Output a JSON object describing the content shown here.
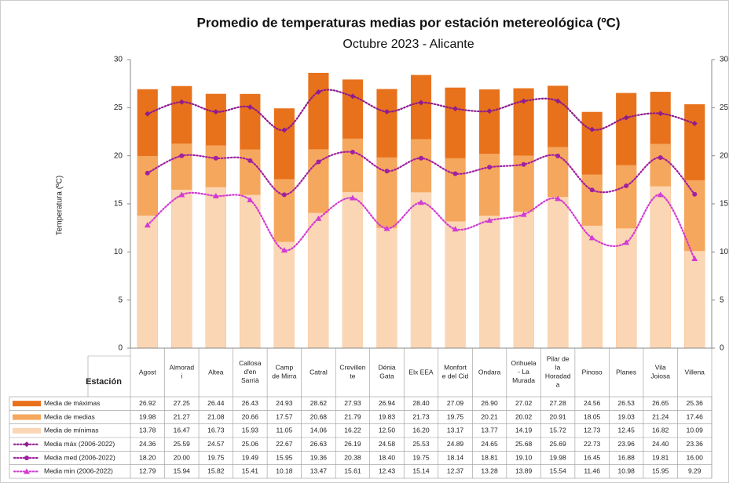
{
  "chart_data": {
    "type": "bar-line",
    "title": "Promedio de temperaturas medias por estación metereológica (ºC)",
    "subtitle": "Octubre 2023 - Alicante",
    "y_label": "Temperatura (ºC)",
    "category_label": "Estación",
    "categories": [
      "Agost",
      "Almorad\ni",
      "Altea",
      "Callosa\nd'en\nSarrià",
      "Camp\nde Mirra",
      "Catral",
      "Crevillen\nte",
      "Dénia\nGata",
      "Elx EEA",
      "Monfort\ne del Cid",
      "Ondara",
      "Orihuela\n- La\nMurada",
      "Pilar de\nla\nHoradad\na",
      "Pinoso",
      "Planes",
      "Vila\nJoiosa",
      "Villena"
    ],
    "ylim": [
      0,
      30
    ],
    "yticks": [
      0,
      5,
      10,
      15,
      20,
      25,
      30
    ],
    "series": [
      {
        "name": "Media de máximas",
        "kind": "bar",
        "color": "#e8711c",
        "values": [
          26.92,
          27.25,
          26.44,
          26.43,
          24.93,
          28.62,
          27.93,
          26.94,
          28.4,
          27.09,
          26.9,
          27.02,
          27.28,
          24.56,
          26.53,
          26.65,
          25.36
        ],
        "value_labels": [
          "26.92",
          "27.25",
          "26.44",
          "26.43",
          "24.93",
          "28.62",
          "27.93",
          "26.94",
          "28.40",
          "27.09",
          "26.90",
          "27.02",
          "27.28",
          "24.56",
          "26.53",
          "26.65",
          "25.36"
        ]
      },
      {
        "name": "Media de medias",
        "kind": "bar",
        "color": "#f5a75e",
        "values": [
          19.98,
          21.27,
          21.08,
          20.66,
          17.57,
          20.68,
          21.79,
          19.83,
          21.73,
          19.75,
          20.21,
          20.02,
          20.91,
          18.05,
          19.03,
          21.24,
          17.46
        ],
        "value_labels": [
          "19.98",
          "21.27",
          "21.08",
          "20.66",
          "17.57",
          "20.68",
          "21.79",
          "19.83",
          "21.73",
          "19.75",
          "20.21",
          "20.02",
          "20.91",
          "18.05",
          "19.03",
          "21.24",
          "17.46"
        ]
      },
      {
        "name": "Media de mínimas",
        "kind": "bar",
        "color": "#fbd6b4",
        "values": [
          13.78,
          16.47,
          16.73,
          15.93,
          11.05,
          14.06,
          16.22,
          12.5,
          16.2,
          13.17,
          13.77,
          14.19,
          15.72,
          12.73,
          12.45,
          16.82,
          10.09
        ],
        "value_labels": [
          "13.78",
          "16.47",
          "16.73",
          "15.93",
          "11.05",
          "14.06",
          "16.22",
          "12.50",
          "16.20",
          "13.17",
          "13.77",
          "14.19",
          "15.72",
          "12.73",
          "12.45",
          "16.82",
          "10.09"
        ]
      },
      {
        "name": "Media máx (2006-2022)",
        "kind": "line",
        "marker": "diamond",
        "color": "#8e1c8e",
        "values": [
          24.36,
          25.59,
          24.57,
          25.06,
          22.67,
          26.63,
          26.19,
          24.58,
          25.53,
          24.89,
          24.65,
          25.68,
          25.69,
          22.73,
          23.96,
          24.4,
          23.36
        ],
        "value_labels": [
          "24.36",
          "25.59",
          "24.57",
          "25.06",
          "22.67",
          "26.63",
          "26.19",
          "24.58",
          "25.53",
          "24.89",
          "24.65",
          "25.68",
          "25.69",
          "22.73",
          "23.96",
          "24.40",
          "23.36"
        ]
      },
      {
        "name": "Media med (2006-2022)",
        "kind": "line",
        "marker": "circle",
        "color": "#a020a0",
        "values": [
          18.2,
          20.0,
          19.75,
          19.49,
          15.95,
          19.36,
          20.38,
          18.4,
          19.75,
          18.14,
          18.81,
          19.1,
          19.98,
          16.45,
          16.88,
          19.81,
          16.0
        ],
        "value_labels": [
          "18.20",
          "20.00",
          "19.75",
          "19.49",
          "15.95",
          "19.36",
          "20.38",
          "18.40",
          "19.75",
          "18.14",
          "18.81",
          "19.10",
          "19.98",
          "16.45",
          "16.88",
          "19.81",
          "16.00"
        ]
      },
      {
        "name": "Media min (2006-2022)",
        "kind": "line",
        "marker": "triangle",
        "color": "#d23cd2",
        "values": [
          12.79,
          15.94,
          15.82,
          15.41,
          10.18,
          13.47,
          15.61,
          12.43,
          15.14,
          12.37,
          13.28,
          13.89,
          15.54,
          11.46,
          10.98,
          15.95,
          9.29
        ],
        "value_labels": [
          "12.79",
          "15.94",
          "15.82",
          "15.41",
          "10.18",
          "13.47",
          "15.61",
          "12.43",
          "15.14",
          "12.37",
          "13.28",
          "13.89",
          "15.54",
          "11.46",
          "10.98",
          "15.95",
          "9.29"
        ]
      }
    ]
  }
}
